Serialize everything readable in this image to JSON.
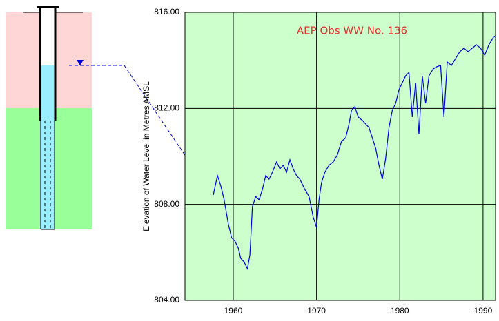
{
  "chart_data": {
    "type": "line",
    "title": "AEP Obs WW No. 136",
    "y_label": "Elevation of Water Level in Metres AMSL",
    "xlim": [
      1954.2,
      1991.5
    ],
    "xticks": [
      1960,
      1970,
      1980,
      1990
    ],
    "ylim": [
      804,
      816
    ],
    "yticks": [
      {
        "value": 804,
        "label": "804.00"
      },
      {
        "value": 808,
        "label": "808.00"
      },
      {
        "value": 812,
        "label": "812.00"
      },
      {
        "value": 816,
        "label": "816.00"
      }
    ],
    "grid": true,
    "series": [
      {
        "color": "#0000e0",
        "x": [
          1957.6,
          1958.1,
          1958.5,
          1958.9,
          1959.4,
          1959.8,
          1960.2,
          1960.6,
          1960.9,
          1961.3,
          1961.7,
          1962.0,
          1962.3,
          1962.7,
          1963.1,
          1963.5,
          1963.9,
          1964.3,
          1964.7,
          1965.2,
          1965.6,
          1966.0,
          1966.4,
          1966.8,
          1967.2,
          1967.6,
          1968.0,
          1968.6,
          1969.1,
          1969.6,
          1970.0,
          1970.3,
          1970.6,
          1971.0,
          1971.5,
          1972.0,
          1972.5,
          1973.0,
          1973.5,
          1973.9,
          1974.2,
          1974.6,
          1975.0,
          1975.5,
          1975.9,
          1976.3,
          1976.7,
          1977.1,
          1977.5,
          1977.9,
          1978.3,
          1978.7,
          1979.1,
          1979.5,
          1979.9,
          1980.3,
          1980.7,
          1981.1,
          1981.5,
          1981.9,
          1982.3,
          1982.7,
          1983.1,
          1983.5,
          1984.0,
          1984.4,
          1984.9,
          1985.3,
          1985.7,
          1986.2,
          1986.7,
          1987.2,
          1987.7,
          1988.2,
          1988.7,
          1989.2,
          1989.7,
          1990.2,
          1990.7,
          1991.2,
          1991.4
        ],
        "values": [
          808.39,
          809.2,
          808.77,
          808.2,
          807.19,
          806.61,
          806.47,
          806.18,
          805.75,
          805.6,
          805.32,
          805.9,
          807.9,
          808.33,
          808.19,
          808.62,
          809.2,
          809.05,
          809.34,
          809.77,
          809.48,
          809.63,
          809.34,
          809.86,
          809.48,
          809.2,
          809.05,
          808.62,
          808.33,
          807.47,
          807.04,
          808.19,
          808.91,
          809.34,
          809.63,
          809.77,
          810.06,
          810.63,
          810.77,
          811.35,
          811.92,
          812.07,
          811.64,
          811.5,
          811.35,
          811.2,
          810.77,
          810.34,
          809.63,
          809.05,
          809.91,
          811.2,
          811.92,
          812.21,
          812.78,
          813.07,
          813.36,
          813.5,
          811.64,
          813.07,
          810.92,
          813.36,
          812.21,
          813.36,
          813.64,
          813.73,
          813.79,
          811.64,
          813.93,
          813.79,
          814.08,
          814.36,
          814.51,
          814.36,
          814.51,
          814.65,
          814.51,
          814.22,
          814.65,
          814.94,
          815.02
        ]
      }
    ]
  }
}
